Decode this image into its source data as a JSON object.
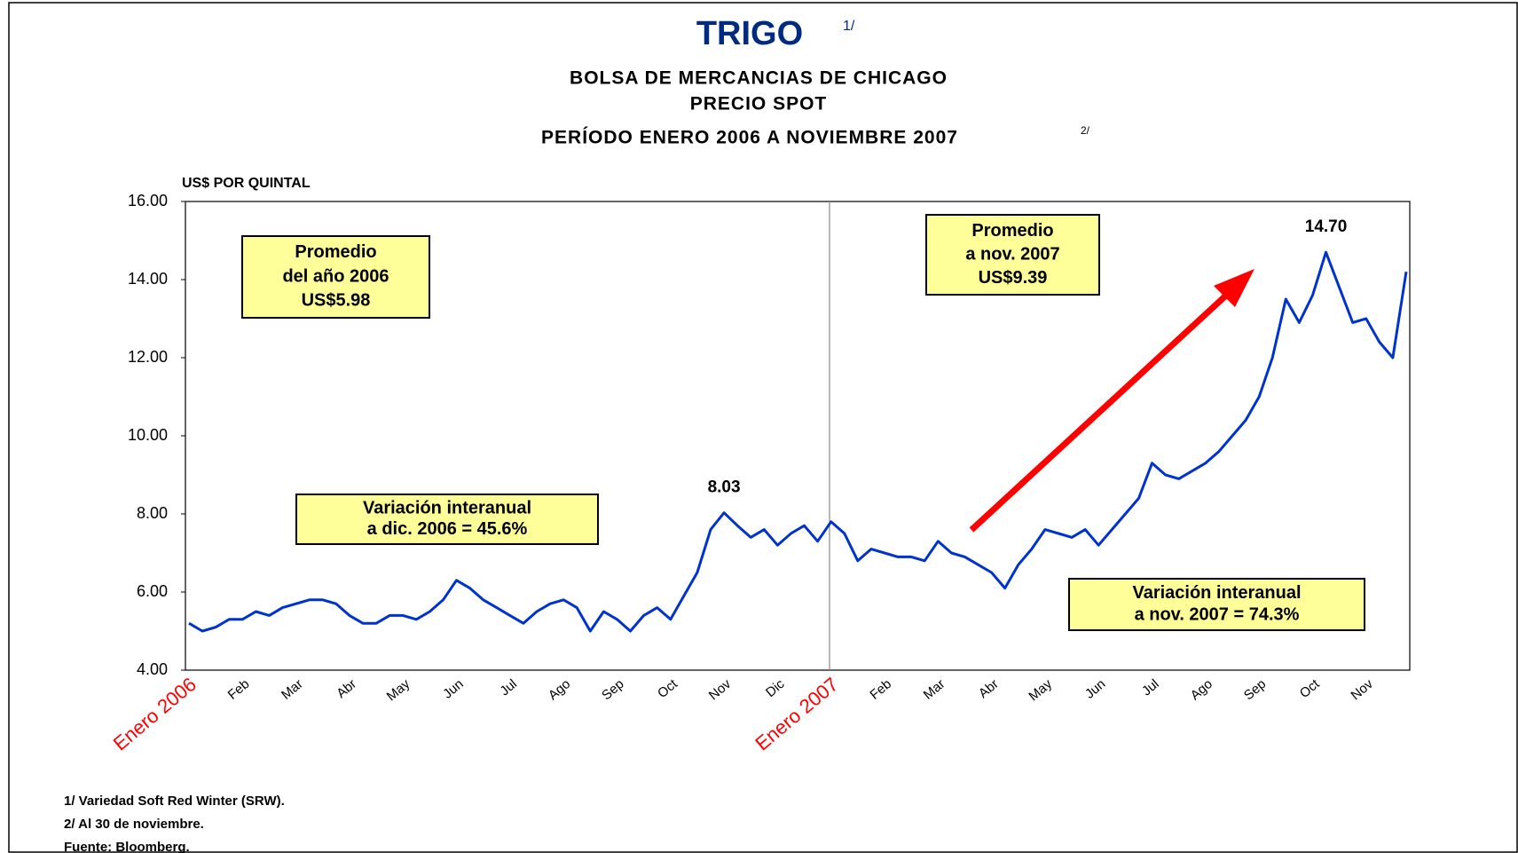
{
  "chart_data": {
    "type": "line",
    "title": "TRIGO",
    "title_note": "1/",
    "subtitle": [
      "BOLSA DE MERCANCIAS DE CHICAGO",
      "PRECIO SPOT",
      "PERÍODO ENERO 2006 A NOVIEMBRE 2007"
    ],
    "subtitle_note": "2/",
    "ylabel": "US$ POR QUINTAL",
    "ylim": [
      4,
      16
    ],
    "yticks": [
      {
        "value": 4,
        "label": "4.00"
      },
      {
        "value": 6,
        "label": "6.00"
      },
      {
        "value": 8,
        "label": "8.00"
      },
      {
        "value": 10,
        "label": "10.00"
      },
      {
        "value": 12,
        "label": "12.00"
      },
      {
        "value": 14,
        "label": "14.00"
      },
      {
        "value": 16,
        "label": "16.00"
      }
    ],
    "color": "#0033cc",
    "categories": [
      "Enero 2006",
      null,
      null,
      null,
      "Feb",
      null,
      null,
      null,
      "Mar",
      null,
      null,
      null,
      "Abr",
      null,
      null,
      null,
      "May",
      null,
      null,
      null,
      "Jun",
      null,
      null,
      null,
      "Jul",
      null,
      null,
      null,
      "Ago",
      null,
      null,
      null,
      "Sep",
      null,
      null,
      null,
      "Oct",
      null,
      null,
      null,
      "Nov",
      null,
      null,
      null,
      "Dic",
      null,
      null,
      null,
      "Enero 2007",
      null,
      null,
      null,
      "Feb",
      null,
      null,
      null,
      "Mar",
      null,
      null,
      null,
      "Abr",
      null,
      null,
      null,
      "May",
      null,
      null,
      null,
      "Jun",
      null,
      null,
      null,
      "Jul",
      null,
      null,
      null,
      "Ago",
      null,
      null,
      null,
      "Sep",
      null,
      null,
      null,
      "Oct",
      null,
      null,
      null,
      "Nov",
      null,
      null,
      null
    ],
    "values": [
      5.2,
      5.0,
      5.1,
      5.3,
      5.3,
      5.5,
      5.4,
      5.6,
      5.7,
      5.8,
      5.8,
      5.7,
      5.4,
      5.2,
      5.2,
      5.4,
      5.4,
      5.3,
      5.5,
      5.8,
      6.3,
      6.1,
      5.8,
      5.6,
      5.4,
      5.2,
      5.5,
      5.7,
      5.8,
      5.6,
      5.0,
      5.5,
      5.3,
      5.0,
      5.4,
      5.6,
      5.3,
      5.9,
      6.5,
      7.6,
      8.03,
      7.7,
      7.4,
      7.6,
      7.2,
      7.5,
      7.7,
      7.3,
      7.8,
      7.5,
      6.8,
      7.1,
      7.0,
      6.9,
      6.9,
      6.8,
      7.3,
      7.0,
      6.9,
      6.7,
      6.5,
      6.1,
      6.7,
      7.1,
      7.6,
      7.5,
      7.4,
      7.6,
      7.2,
      7.6,
      8.0,
      8.4,
      9.3,
      9.0,
      8.9,
      9.1,
      9.3,
      9.6,
      10.0,
      10.4,
      11.0,
      12.0,
      13.5,
      12.9,
      13.6,
      14.7,
      13.8,
      12.9,
      13.0,
      12.4,
      12.0,
      14.2
    ],
    "value_labels": [
      null,
      null,
      null,
      null,
      null,
      null,
      null,
      null,
      null,
      null,
      null,
      null,
      null,
      null,
      null,
      null,
      null,
      null,
      null,
      null,
      null,
      null,
      null,
      null,
      null,
      null,
      null,
      null,
      null,
      null,
      null,
      null,
      null,
      null,
      null,
      null,
      null,
      null,
      null,
      null,
      "8.03",
      null,
      null,
      null,
      null,
      null,
      null,
      null,
      null,
      null,
      null,
      null,
      null,
      null,
      null,
      null,
      null,
      null,
      null,
      null,
      null,
      null,
      null,
      null,
      null,
      null,
      null,
      null,
      null,
      null,
      null,
      null,
      null,
      null,
      null,
      null,
      null,
      null,
      null,
      null,
      null,
      null,
      null,
      null,
      null,
      "14.70",
      null,
      null,
      null,
      null,
      null,
      null
    ],
    "annotations": [
      [
        "Promedio",
        "del año 2006",
        "US$5.98"
      ],
      [
        "Promedio",
        "a nov. 2007",
        "US$9.39"
      ],
      [
        "Variación interanual",
        "a dic. 2006 = 45.6%"
      ],
      [
        "Variación interanual",
        "a nov. 2007 = 74.3%"
      ]
    ],
    "notes": [
      "1/ Variedad Soft Red Winter (SRW).",
      "2/ Al 30 de noviembre.",
      "Fuente: Bloomberg."
    ]
  }
}
